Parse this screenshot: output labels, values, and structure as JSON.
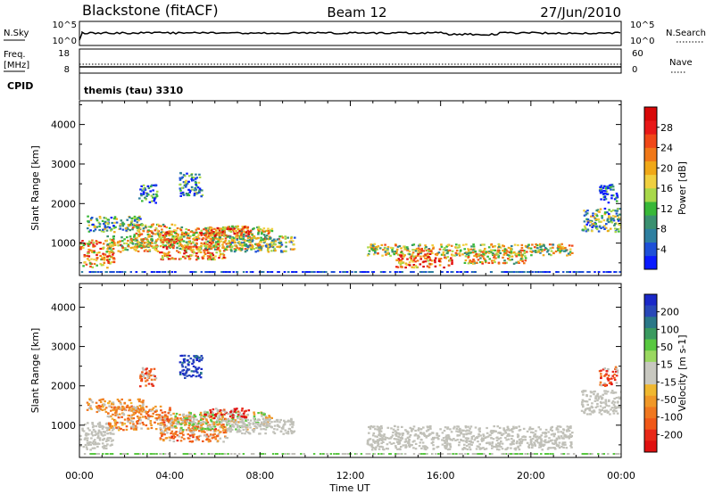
{
  "header": {
    "radar": "Blackstone (fitACF)",
    "beam": "Beam 12",
    "date": "27/Jun/2010"
  },
  "strip_nsky": {
    "left_label": "N.Sky",
    "right_label": "N.Search",
    "left_ticks": [
      "10^5",
      "10^0"
    ],
    "right_ticks": [
      "10^5",
      "10^0"
    ]
  },
  "strip_freq": {
    "left_label": "Freq.",
    "left_unit": "[MHz]",
    "right_label": "Nave",
    "left_ticks": [
      "18",
      "8"
    ],
    "right_ticks": [
      "60",
      "0"
    ]
  },
  "strip_cpid": {
    "label": "CPID",
    "value": "themis (tau) 3310"
  },
  "colors": {
    "frame": "#000000",
    "ground_scatter": "#c0c0b8"
  },
  "chart_data": [
    {
      "type": "heatmap",
      "name": "Power",
      "ylabel": "Slant Range [km]",
      "xlabel": "",
      "x_ticks": [
        "00:00",
        "04:00",
        "08:00",
        "12:00",
        "16:00",
        "20:00",
        "00:00"
      ],
      "xlim_hours": [
        0,
        24
      ],
      "y_ticks": [
        1000,
        2000,
        3000,
        4000
      ],
      "ylim": [
        180,
        4600
      ],
      "colorbar": {
        "label": "Power [dB]",
        "ticks": [
          "4",
          "8",
          "12",
          "16",
          "20",
          "24",
          "28"
        ],
        "colors": [
          "#0a1aff",
          "#1e50d8",
          "#2e7fa0",
          "#3a9070",
          "#38b838",
          "#a8d84a",
          "#f0d040",
          "#f0a818",
          "#f07818",
          "#f04818",
          "#e81818",
          "#d80808"
        ]
      },
      "regions": [
        {
          "t": [
            0.0,
            1.5
          ],
          "r": [
            400,
            1100
          ],
          "level": 0.65
        },
        {
          "t": [
            0.3,
            2.8
          ],
          "r": [
            1300,
            1700
          ],
          "level": 0.35
        },
        {
          "t": [
            1.2,
            3.5
          ],
          "r": [
            800,
            1200
          ],
          "level": 0.55
        },
        {
          "t": [
            2.2,
            4.3
          ],
          "r": [
            900,
            1500
          ],
          "level": 0.55
        },
        {
          "t": [
            3.5,
            6.5
          ],
          "r": [
            600,
            1300
          ],
          "level": 0.7
        },
        {
          "t": [
            4.0,
            8.5
          ],
          "r": [
            850,
            1450
          ],
          "level": 0.55
        },
        {
          "t": [
            5.5,
            7.5
          ],
          "r": [
            1200,
            1450
          ],
          "level": 0.75
        },
        {
          "t": [
            6.5,
            9.5
          ],
          "r": [
            800,
            1200
          ],
          "level": 0.4
        },
        {
          "t": [
            2.6,
            3.4
          ],
          "r": [
            2000,
            2500
          ],
          "level": 0.2
        },
        {
          "t": [
            4.4,
            5.4
          ],
          "r": [
            2200,
            2800
          ],
          "level": 0.25
        },
        {
          "t": [
            12.7,
            21.8
          ],
          "r": [
            700,
            1000
          ],
          "level": 0.5
        },
        {
          "t": [
            14.0,
            16.5
          ],
          "r": [
            400,
            750
          ],
          "level": 0.75
        },
        {
          "t": [
            17.0,
            19.8
          ],
          "r": [
            500,
            850
          ],
          "level": 0.55
        },
        {
          "t": [
            22.2,
            24.0
          ],
          "r": [
            1300,
            1900
          ],
          "level": 0.35
        },
        {
          "t": [
            23.0,
            23.8
          ],
          "r": [
            2000,
            2500
          ],
          "level": 0.15
        }
      ]
    },
    {
      "type": "heatmap",
      "name": "Velocity",
      "ylabel": "Slant Range [km]",
      "xlabel": "Time UT",
      "x_ticks": [
        "00:00",
        "04:00",
        "08:00",
        "12:00",
        "16:00",
        "20:00",
        "00:00"
      ],
      "xlim_hours": [
        0,
        24
      ],
      "y_ticks": [
        1000,
        2000,
        3000,
        4000
      ],
      "ylim": [
        180,
        4600
      ],
      "colorbar": {
        "label": "Velocity [m s-1]",
        "ticks": [
          "200",
          "100",
          "50",
          "15",
          "-15",
          "-50",
          "-100",
          "-200"
        ],
        "colors": [
          "#1a28c8",
          "#2848b8",
          "#2a7888",
          "#3a9a60",
          "#58c840",
          "#9ad860",
          "#c8c8c0",
          "#c8c8c0",
          "#f0b830",
          "#f09828",
          "#f07820",
          "#f05818",
          "#e82818",
          "#e01010"
        ]
      },
      "regions": [
        {
          "t": [
            0.0,
            1.5
          ],
          "r": [
            400,
            1100
          ],
          "kind": "gs"
        },
        {
          "t": [
            0.3,
            2.8
          ],
          "r": [
            1350,
            1700
          ],
          "kind": "neg",
          "level": 0.3
        },
        {
          "t": [
            1.2,
            4.0
          ],
          "r": [
            900,
            1500
          ],
          "kind": "neg",
          "level": 0.4
        },
        {
          "t": [
            3.5,
            6.5
          ],
          "r": [
            600,
            1300
          ],
          "kind": "neg",
          "level": 0.45
        },
        {
          "t": [
            4.0,
            8.5
          ],
          "r": [
            900,
            1350
          ],
          "kind": "mix",
          "level": 0.35
        },
        {
          "t": [
            5.5,
            7.5
          ],
          "r": [
            1200,
            1450
          ],
          "kind": "neg",
          "level": 0.85
        },
        {
          "t": [
            6.5,
            9.5
          ],
          "r": [
            800,
            1200
          ],
          "kind": "gs"
        },
        {
          "t": [
            2.6,
            3.4
          ],
          "r": [
            2000,
            2500
          ],
          "kind": "neg",
          "level": 0.6
        },
        {
          "t": [
            4.4,
            5.4
          ],
          "r": [
            2200,
            2800
          ],
          "kind": "pos",
          "level": 0.8
        },
        {
          "t": [
            12.7,
            21.8
          ],
          "r": [
            400,
            1000
          ],
          "kind": "gs"
        },
        {
          "t": [
            22.2,
            24.0
          ],
          "r": [
            1300,
            1900
          ],
          "kind": "gs"
        },
        {
          "t": [
            23.0,
            23.8
          ],
          "r": [
            2000,
            2500
          ],
          "kind": "neg",
          "level": 0.7
        }
      ]
    }
  ]
}
